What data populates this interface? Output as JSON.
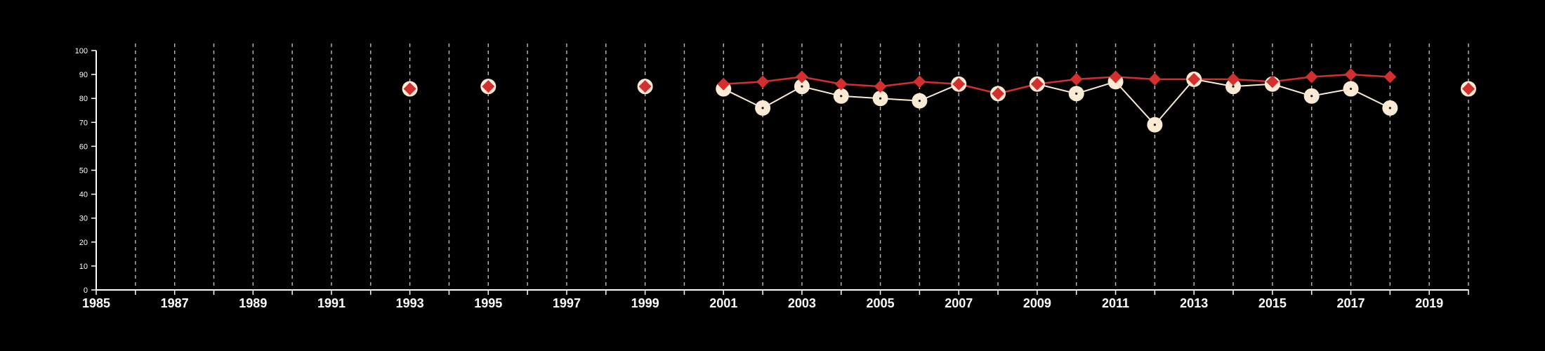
{
  "colors": {
    "background": "#000000",
    "axis": "#ffffff",
    "grid": "#bbbbbb",
    "cream_series": "#fbebd5",
    "red_series": "#d32f2f",
    "marker_dot": "#1a1a1a"
  },
  "chart_data": {
    "type": "line",
    "title": "",
    "xlabel": "",
    "ylabel": "",
    "xlim": [
      1985,
      2020
    ],
    "ylim": [
      0,
      100
    ],
    "x_ticks": [
      "1985",
      "1987",
      "1989",
      "1991",
      "1993",
      "1995",
      "1997",
      "1999",
      "2001",
      "2003",
      "2005",
      "2007",
      "2009",
      "2011",
      "2013",
      "2015",
      "2017",
      "2019"
    ],
    "y_ticks": [
      "0",
      "10",
      "20",
      "30",
      "40",
      "50",
      "60",
      "70",
      "80",
      "90",
      "100"
    ],
    "grid": "vertical dashed lines at every year",
    "legend": "none",
    "series": [
      {
        "marker": "circle",
        "color": "cream",
        "x": [
          1993,
          1995,
          1999,
          2001,
          2002,
          2003,
          2004,
          2005,
          2006,
          2007,
          2008,
          2009,
          2010,
          2011,
          2012,
          2013,
          2014,
          2015,
          2016,
          2017,
          2018,
          2020
        ],
        "y": [
          84,
          85,
          85,
          84,
          76,
          85,
          81,
          80,
          79,
          86,
          82,
          86,
          82,
          87,
          69,
          88,
          85,
          86,
          81,
          84,
          76,
          84
        ]
      },
      {
        "marker": "diamond",
        "color": "red",
        "x": [
          1993,
          1995,
          1999,
          2001,
          2002,
          2003,
          2004,
          2005,
          2006,
          2007,
          2008,
          2009,
          2010,
          2011,
          2012,
          2013,
          2014,
          2015,
          2016,
          2017,
          2018,
          2020
        ],
        "y": [
          84,
          85,
          85,
          86,
          87,
          89,
          86,
          85,
          87,
          86,
          82,
          86,
          88,
          89,
          88,
          88,
          88,
          87,
          89,
          90,
          89,
          84
        ]
      }
    ]
  }
}
